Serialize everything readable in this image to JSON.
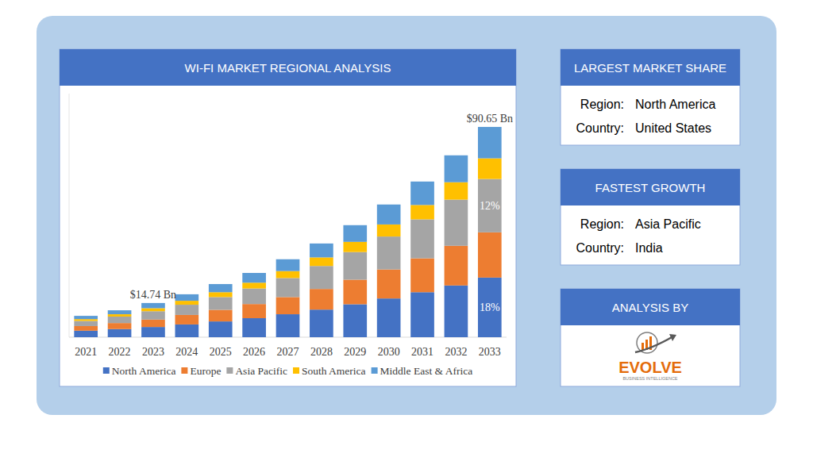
{
  "chart_data": {
    "type": "bar",
    "title": "WI-FI MARKET REGIONAL ANALYSIS",
    "categories": [
      "2021",
      "2022",
      "2023",
      "2024",
      "2025",
      "2026",
      "2027",
      "2028",
      "2029",
      "2030",
      "2031",
      "2032",
      "2033"
    ],
    "series": [
      {
        "name": "North America",
        "color": "#4472c4",
        "values": [
          2.8,
          3.5,
          4.4,
          5.5,
          6.8,
          8.2,
          9.9,
          11.9,
          14.2,
          16.7,
          19.4,
          22.3,
          25.7
        ]
      },
      {
        "name": "Europe",
        "color": "#ed7d31",
        "values": [
          2.0,
          2.6,
          3.2,
          4.1,
          5.0,
          6.1,
          7.4,
          8.9,
          10.6,
          12.5,
          14.6,
          17.1,
          19.5
        ]
      },
      {
        "name": "Asia Pacific",
        "color": "#a5a5a5",
        "values": [
          2.2,
          2.8,
          3.6,
          4.4,
          5.5,
          6.7,
          8.2,
          9.9,
          11.9,
          14.2,
          16.8,
          19.9,
          23.0
        ]
      },
      {
        "name": "South America",
        "color": "#ffc000",
        "values": [
          0.8,
          1.0,
          1.3,
          1.7,
          2.1,
          2.5,
          3.0,
          3.7,
          4.4,
          5.2,
          6.2,
          7.5,
          8.9
        ]
      },
      {
        "name": "Middle East & Africa",
        "color": "#5b9bd5",
        "values": [
          1.4,
          1.7,
          2.24,
          2.8,
          3.5,
          4.2,
          5.1,
          6.0,
          7.2,
          8.6,
          10.1,
          11.6,
          13.55
        ]
      }
    ],
    "stacked": true,
    "ylim": [
      0,
      105
    ],
    "tick_labels": "x",
    "grid": false,
    "legend": "bottom",
    "annotations": [
      {
        "text": "$14.74 Bn",
        "category": "2023"
      },
      {
        "text": "$90.65 Bn",
        "category": "2033"
      },
      {
        "text": "12%",
        "category": "2033",
        "series": "Asia Pacific"
      },
      {
        "text": "18%",
        "category": "2033",
        "series": "North America"
      }
    ]
  },
  "panels": [
    {
      "title": "LARGEST MARKET SHARE",
      "rows": [
        {
          "label": "Region:",
          "value": "North America"
        },
        {
          "label": "Country:",
          "value": "United States"
        }
      ]
    },
    {
      "title": "FASTEST GROWTH",
      "rows": [
        {
          "label": "Region:",
          "value": "Asia Pacific"
        },
        {
          "label": "Country:",
          "value": "India"
        }
      ]
    }
  ],
  "analysis_by": {
    "title": "ANALYSIS BY",
    "logo_text": "EVOLVE",
    "logo_subtext": "BUSINESS INTELLIGENCE"
  }
}
